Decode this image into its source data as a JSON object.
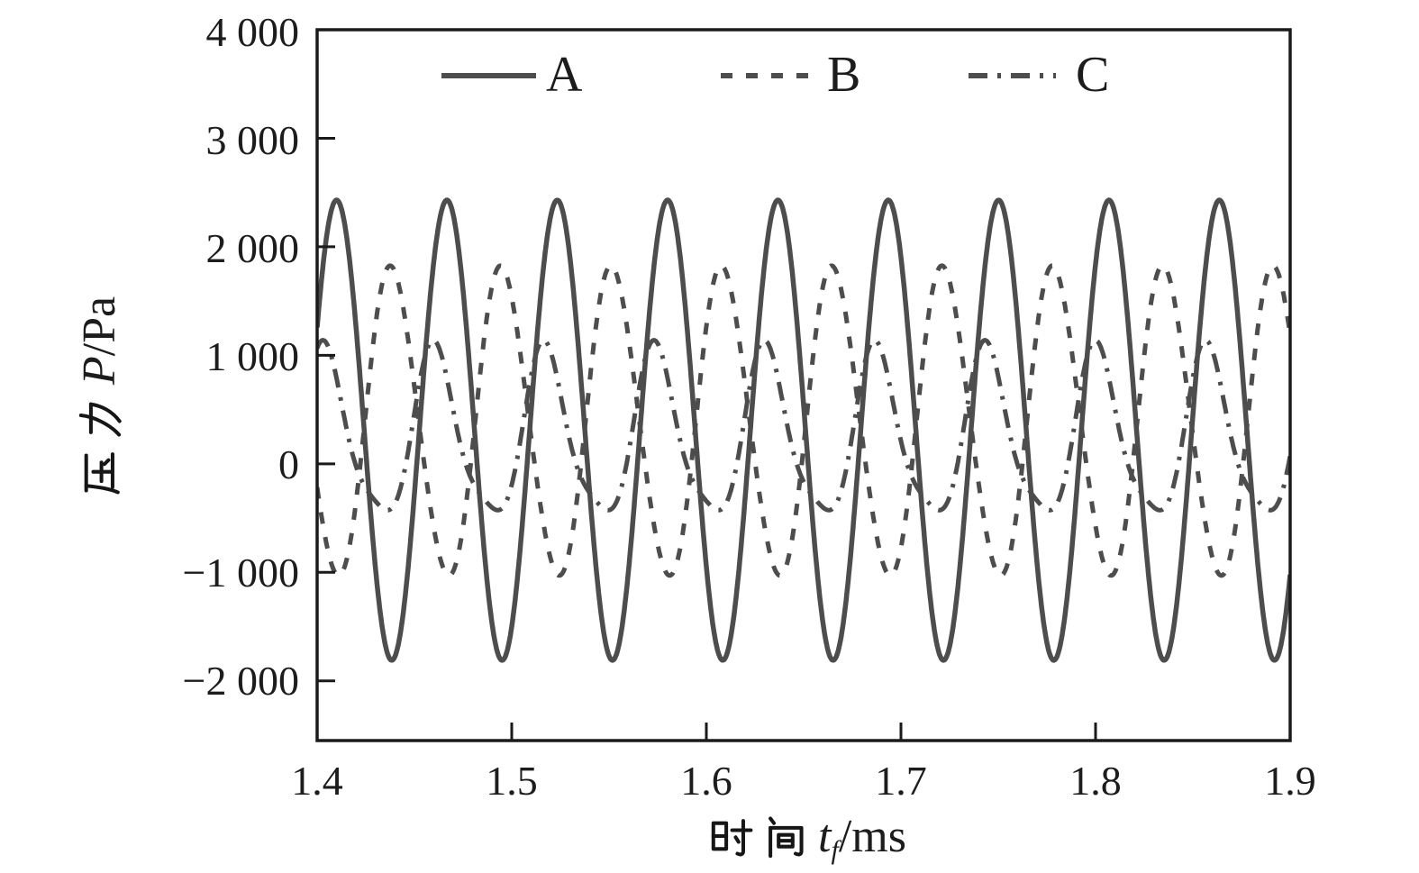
{
  "figure": {
    "background": "#ffffff",
    "frame_color": "#1a1a1a",
    "curve_color": "#4d4d4d",
    "text_color": "#1c1c1c",
    "ylabel": {
      "cjk": "压力",
      "var": "P",
      "unit": "/Pa",
      "full": "压力 P/Pa"
    },
    "xlabel": {
      "cjk": "时间",
      "var": "t",
      "sub": "f",
      "unit": "/ms",
      "full": "时间 tf/ms"
    }
  },
  "chart_data": {
    "type": "line",
    "title": "",
    "xlabel": "时间 tf/ms",
    "ylabel": "压力 P/Pa",
    "xlim": [
      1.4,
      1.9
    ],
    "ylim": [
      -2550,
      4000
    ],
    "grid": false,
    "legend_position": "top-inside",
    "x_ticks": [
      1.4,
      1.5,
      1.6,
      1.7,
      1.8,
      1.9
    ],
    "x_tick_labels": [
      "1.4",
      "1.5",
      "1.6",
      "1.7",
      "1.8",
      "1.9"
    ],
    "y_ticks": [
      4000,
      3000,
      2000,
      1000,
      0,
      -1000,
      -2000
    ],
    "y_tick_labels": [
      "4 000",
      "3 000",
      "2 000",
      "1 000",
      "0",
      "−1 000",
      "−2 000"
    ],
    "series": [
      {
        "name": "A",
        "style": "solid",
        "peak_pa": 2430,
        "trough_pa": -1810,
        "mean_pa": 310,
        "amplitude_pa": 2120,
        "period_ms": 0.0567,
        "peak_time_ms": 1.41,
        "harm2_amp_pa": 0,
        "harm2_phase_rad": 0
      },
      {
        "name": "B",
        "style": "dashed",
        "peak_pa": 1810,
        "trough_pa": -1060,
        "mean_pa": 370,
        "amplitude_pa": 1420,
        "period_ms": 0.0567,
        "peak_time_ms": 1.4384,
        "harm2_amp_pa": 80,
        "harm2_phase_rad": 1.2
      },
      {
        "name": "C",
        "style": "dashdot",
        "peak_pa": 1100,
        "trough_pa": -450,
        "mean_pa": 230,
        "amplitude_pa": 760,
        "period_ms": 0.0567,
        "peak_time_ms": 1.404,
        "harm2_amp_pa": 160,
        "harm2_phase_rad": 0.5
      }
    ]
  }
}
